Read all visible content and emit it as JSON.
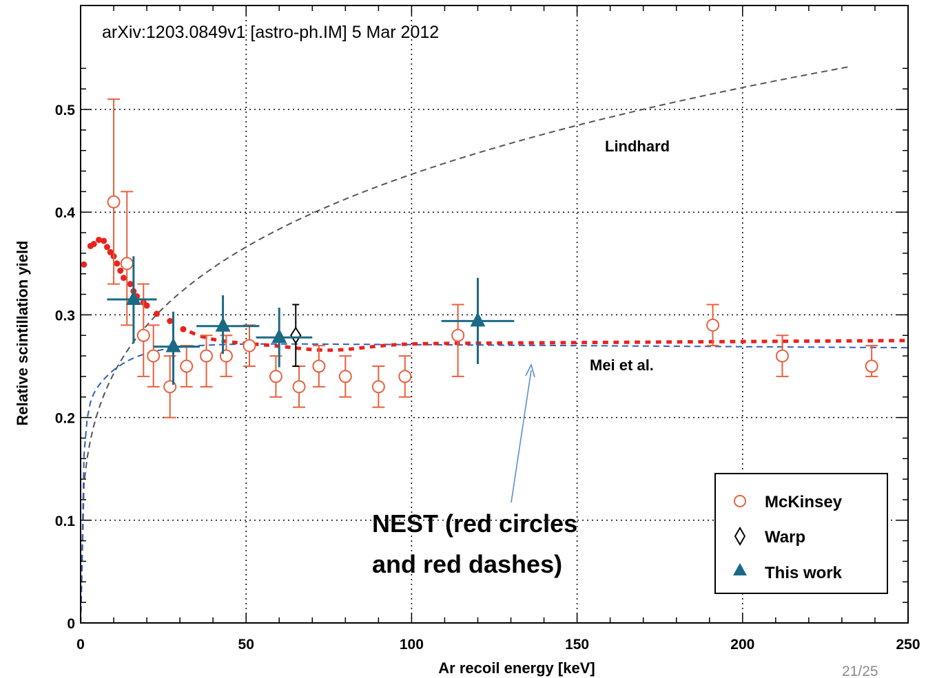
{
  "chart_data": {
    "type": "scatter",
    "xlabel": "Ar recoil energy [keV]",
    "ylabel": "Relative scintillation yield",
    "xlim": [
      0,
      250
    ],
    "ylim": [
      0,
      0.55
    ],
    "xticks": [
      "0",
      "50",
      "100",
      "150",
      "200",
      "250"
    ],
    "yticks": [
      "0",
      "0.1",
      "0.2",
      "0.3",
      "0.4",
      "0.5"
    ],
    "grid": true,
    "legend_position": "bottom-right",
    "series": [
      {
        "name": "McKinsey",
        "marker": "open-circle",
        "color": "#e8603c",
        "points": [
          {
            "x": 10,
            "y": 0.41,
            "lo": 0.33,
            "hi": 0.51
          },
          {
            "x": 14,
            "y": 0.35,
            "lo": 0.29,
            "hi": 0.42
          },
          {
            "x": 19,
            "y": 0.28,
            "lo": 0.24,
            "hi": 0.33
          },
          {
            "x": 22,
            "y": 0.26,
            "lo": 0.23,
            "hi": 0.29
          },
          {
            "x": 27,
            "y": 0.23,
            "lo": 0.2,
            "hi": 0.26
          },
          {
            "x": 32,
            "y": 0.25,
            "lo": 0.23,
            "hi": 0.27
          },
          {
            "x": 38,
            "y": 0.26,
            "lo": 0.23,
            "hi": 0.28
          },
          {
            "x": 44,
            "y": 0.26,
            "lo": 0.24,
            "hi": 0.28
          },
          {
            "x": 51,
            "y": 0.27,
            "lo": 0.25,
            "hi": 0.29
          },
          {
            "x": 59,
            "y": 0.24,
            "lo": 0.22,
            "hi": 0.26
          },
          {
            "x": 66,
            "y": 0.23,
            "lo": 0.21,
            "hi": 0.25
          },
          {
            "x": 72,
            "y": 0.25,
            "lo": 0.23,
            "hi": 0.27
          },
          {
            "x": 80,
            "y": 0.24,
            "lo": 0.22,
            "hi": 0.26
          },
          {
            "x": 90,
            "y": 0.23,
            "lo": 0.21,
            "hi": 0.25
          },
          {
            "x": 98,
            "y": 0.24,
            "lo": 0.22,
            "hi": 0.26
          },
          {
            "x": 114,
            "y": 0.28,
            "lo": 0.24,
            "hi": 0.31
          },
          {
            "x": 191,
            "y": 0.29,
            "lo": 0.27,
            "hi": 0.31
          },
          {
            "x": 212,
            "y": 0.26,
            "lo": 0.24,
            "hi": 0.28
          },
          {
            "x": 239,
            "y": 0.25,
            "lo": 0.24,
            "hi": 0.27
          }
        ]
      },
      {
        "name": "Warp",
        "marker": "open-diamond",
        "color": "#000000",
        "points": [
          {
            "x": 65,
            "y": 0.28,
            "lo": 0.25,
            "hi": 0.31
          }
        ]
      },
      {
        "name": "This work",
        "marker": "filled-triangle",
        "color": "#1b6a85",
        "points": [
          {
            "x": 16,
            "y": 0.315,
            "lo": 0.272,
            "hi": 0.357,
            "xlo": 8,
            "xhi": 23
          },
          {
            "x": 28,
            "y": 0.269,
            "lo": 0.232,
            "hi": 0.303,
            "xlo": 22,
            "xhi": 36
          },
          {
            "x": 43,
            "y": 0.289,
            "lo": 0.262,
            "hi": 0.319,
            "xlo": 35,
            "xhi": 54
          },
          {
            "x": 60,
            "y": 0.278,
            "lo": 0.249,
            "hi": 0.307,
            "xlo": 53,
            "xhi": 70
          },
          {
            "x": 120,
            "y": 0.294,
            "lo": 0.252,
            "hi": 0.336,
            "xlo": 109,
            "xhi": 131
          }
        ]
      }
    ],
    "curves": [
      {
        "name": "Lindhard",
        "style": "dashed",
        "color": "#555555"
      },
      {
        "name": "Mei et al.",
        "style": "dashed",
        "color": "#2f5fb3"
      }
    ]
  },
  "legend": {
    "items": [
      "McKinsey",
      "Warp",
      "This work"
    ]
  },
  "reference_text": "arXiv:1203.0849v1 [astro-ph.IM] 5 Mar 2012",
  "annotation": {
    "line1": "NEST (red circles",
    "line2": "and red dashes)",
    "nest_color": "#e8231e"
  },
  "slide_number": "21/25"
}
